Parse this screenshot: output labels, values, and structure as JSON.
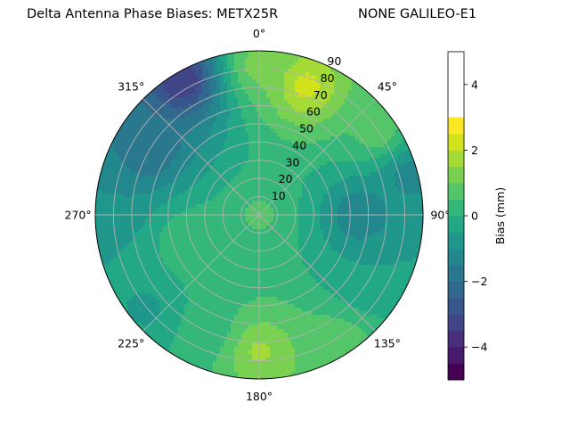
{
  "chart_data": {
    "type": "heatmap",
    "projection": "polar",
    "title": "Delta Antenna Phase Biases: METX25R",
    "subtitle": "NONE GALILEO-E1",
    "azimuth_ticks": [
      "0°",
      "45°",
      "90°",
      "135°",
      "180°",
      "225°",
      "270°",
      "315°"
    ],
    "zenith_ticks": [
      "10",
      "20",
      "30",
      "40",
      "50",
      "60",
      "70",
      "80",
      "90"
    ],
    "colorbar": {
      "label": "Bias (mm)",
      "ticks": [
        "−4",
        "−2",
        "0",
        "2",
        "4"
      ],
      "range": [
        -5,
        5
      ],
      "levels": [
        -5,
        -4.5,
        -4,
        -3.5,
        -3,
        -2.5,
        -2,
        -1.5,
        -1,
        -0.5,
        0,
        0.5,
        1,
        1.5,
        2,
        2.5,
        3,
        3.5,
        4,
        4.5,
        5
      ],
      "colors": [
        "#440154",
        "#481a6c",
        "#472f7d",
        "#414487",
        "#39568c",
        "#31688e",
        "#2a788e",
        "#23888e",
        "#1f988b",
        "#22a884",
        "#35b779",
        "#54c568",
        "#7ad151",
        "#a5db36",
        "#d2e21b",
        "#fde725"
      ]
    },
    "regions_note": "",
    "field": [
      {
        "az": 330,
        "zen": 85,
        "value": -3.5
      },
      {
        "az": 300,
        "zen": 70,
        "value": -2.0
      },
      {
        "az": 275,
        "zen": 85,
        "value": -1.0
      },
      {
        "az": 0,
        "zen": 82,
        "value": 1.2
      },
      {
        "az": 20,
        "zen": 75,
        "value": 2.2
      },
      {
        "az": 55,
        "zen": 80,
        "value": 0.8
      },
      {
        "az": 75,
        "zen": 85,
        "value": -1.2
      },
      {
        "az": 90,
        "zen": 55,
        "value": -1.5
      },
      {
        "az": 120,
        "zen": 70,
        "value": -0.5
      },
      {
        "az": 150,
        "zen": 85,
        "value": 1.0
      },
      {
        "az": 180,
        "zen": 75,
        "value": 1.6
      },
      {
        "az": 205,
        "zen": 70,
        "value": 0.2
      },
      {
        "az": 230,
        "zen": 80,
        "value": -0.6
      },
      {
        "az": 250,
        "zen": 40,
        "value": 0.5
      },
      {
        "az": 0,
        "zen": 0,
        "value": 0.6
      }
    ]
  }
}
